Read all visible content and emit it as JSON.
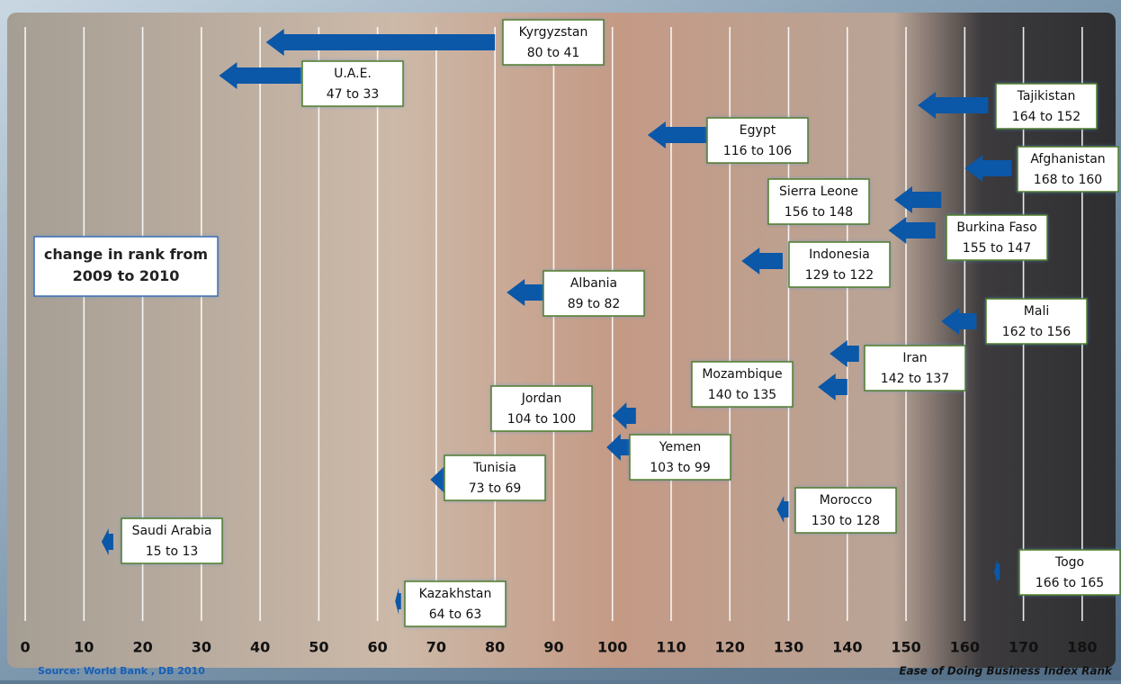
{
  "chart_data": {
    "type": "arrow",
    "note_box": "change in rank from 2009 to 2010",
    "source": "Source: World Bank , DB 2010",
    "x_label": "Ease of Doing Business Index  Rank",
    "categories": [
      "Kyrgyzstan",
      "U.A.E.",
      "Tajikistan",
      "Egypt",
      "Afghanistan",
      "Sierra Leone",
      "Burkina Faso",
      "Indonesia",
      "Albania",
      "Mali",
      "Iran",
      "Mozambique",
      "Jordan",
      "Yemen",
      "Tunisia",
      "Morocco",
      "Saudi Arabia",
      "Togo",
      "Kazakhstan"
    ],
    "from": [
      80,
      47,
      164,
      116,
      168,
      156,
      155,
      129,
      89,
      162,
      142,
      140,
      104,
      103,
      73,
      130,
      15,
      166,
      64
    ],
    "to": [
      41,
      33,
      152,
      106,
      160,
      148,
      147,
      122,
      82,
      156,
      137,
      135,
      100,
      99,
      69,
      128,
      13,
      165,
      63
    ],
    "value_labels": [
      "80 to 41",
      "47 to 33",
      "164 to 152",
      "116 to 106",
      "168 to 160",
      "156 to 148",
      "155 to 147",
      "129 to 122",
      "89 to 82",
      "162 to 156",
      "142 to 137",
      "140 to 135",
      "104 to 100",
      "103 to 99",
      "73 to 69",
      "130 to 128",
      "15 to 13",
      "166 to 165",
      "64 to 63"
    ],
    "color": "#0b57a8",
    "xlim": [
      -2,
      186
    ],
    "xticks": [
      0,
      10,
      20,
      30,
      40,
      50,
      60,
      70,
      80,
      90,
      100,
      110,
      120,
      130,
      140,
      150,
      160,
      170,
      180
    ],
    "grid": true
  }
}
